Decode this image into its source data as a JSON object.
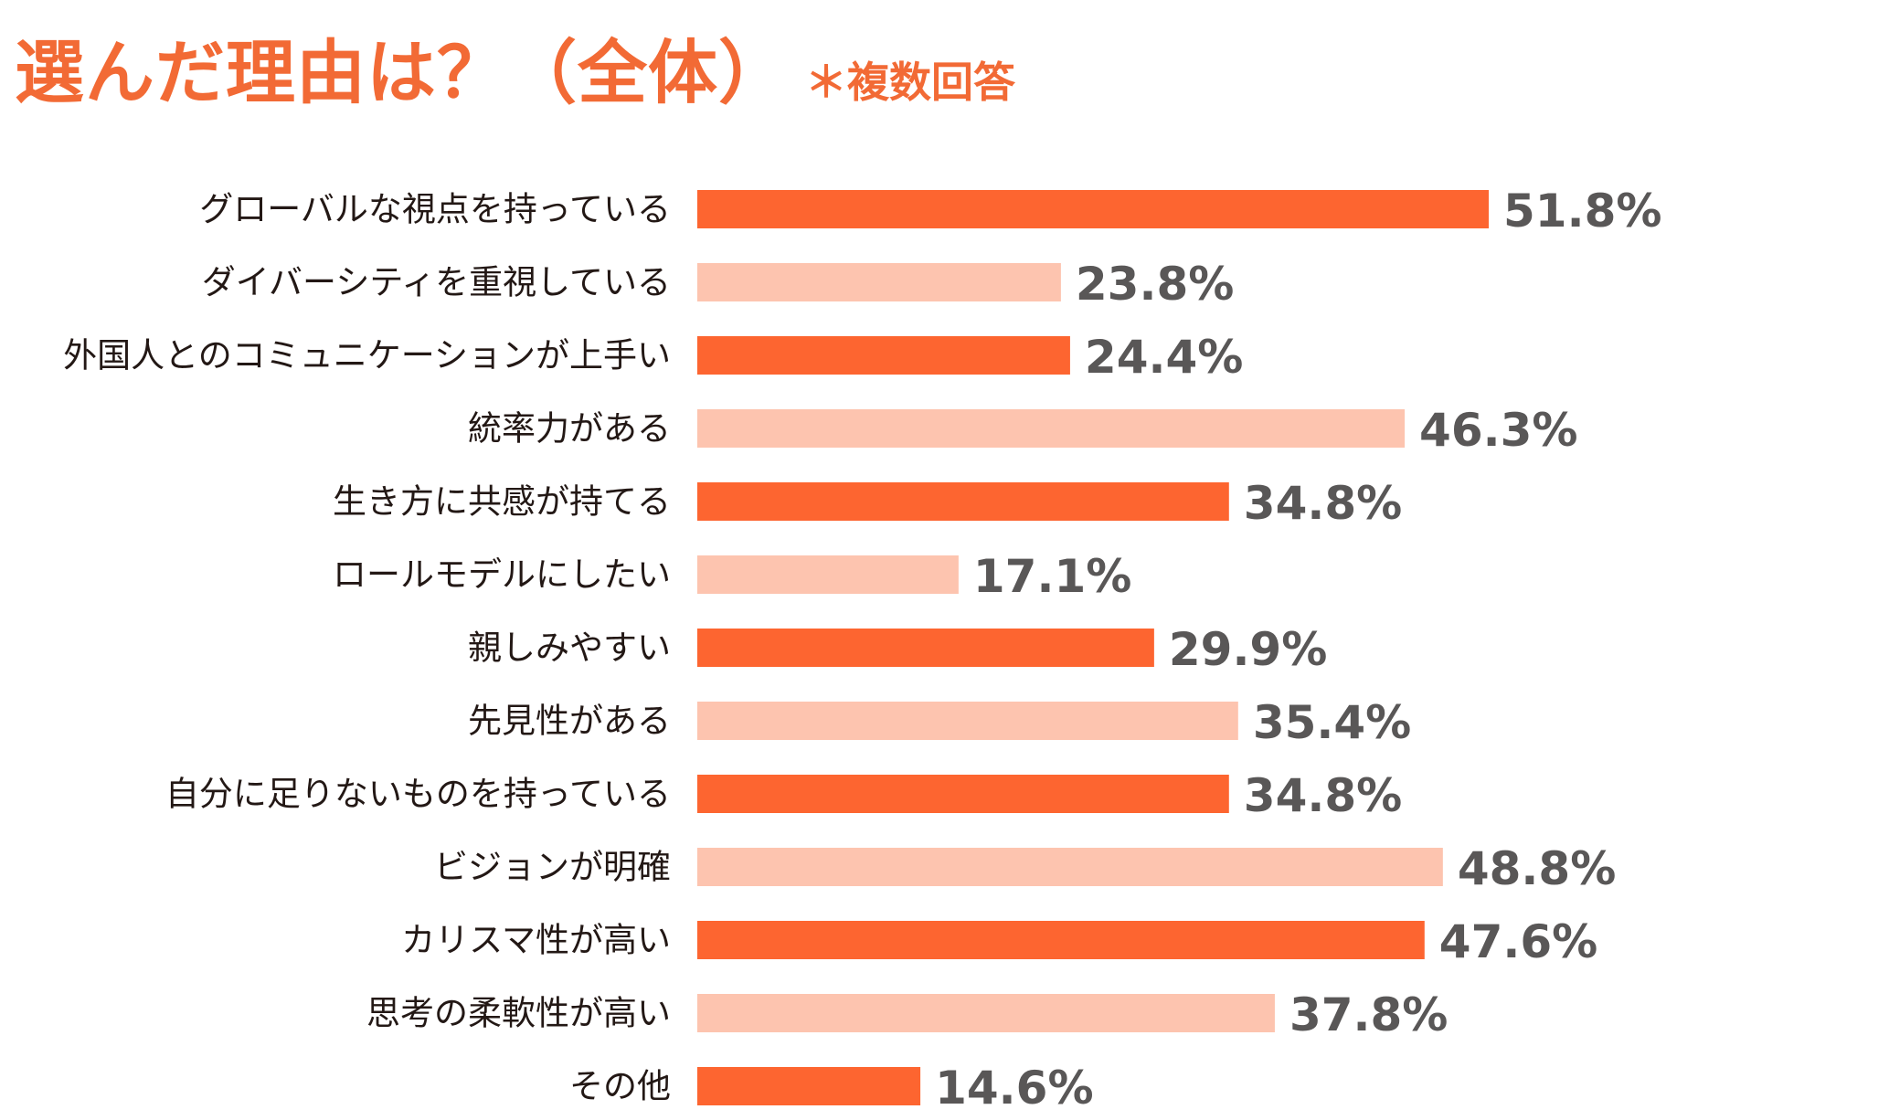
{
  "title": "選んだ理由は？（全体）",
  "subtitle": "＊複数回答",
  "colors": {
    "title": "#f26a35",
    "bar_dark": "#fd6530",
    "bar_light": "#fdc4af",
    "value_text": "#595757",
    "label_text": "#231815"
  },
  "chart_data": {
    "type": "bar",
    "orientation": "horizontal",
    "categories": [
      "グローバルな視点を持っている",
      "ダイバーシティを重視している",
      "外国人とのコミュニケーションが上手い",
      "統率力がある",
      "生き方に共感が持てる",
      "ロールモデルにしたい",
      "親しみやすい",
      "先見性がある",
      "自分に足りないものを持っている",
      "ビジョンが明確",
      "カリスマ性が高い",
      "思考の柔軟性が高い",
      "その他"
    ],
    "values": [
      51.8,
      23.8,
      24.4,
      46.3,
      34.8,
      17.1,
      29.9,
      35.4,
      34.8,
      48.8,
      47.6,
      37.8,
      14.6
    ],
    "value_labels": [
      "51.8%",
      "23.8%",
      "24.4%",
      "46.3%",
      "34.8%",
      "17.1%",
      "29.9%",
      "35.4%",
      "34.8%",
      "48.8%",
      "47.6%",
      "37.8%",
      "14.6%"
    ],
    "bar_colors": [
      "dark",
      "light",
      "dark",
      "light",
      "dark",
      "light",
      "dark",
      "light",
      "dark",
      "light",
      "dark",
      "light",
      "dark"
    ],
    "xlim": [
      0,
      100
    ],
    "grid": false,
    "legend": "none"
  }
}
